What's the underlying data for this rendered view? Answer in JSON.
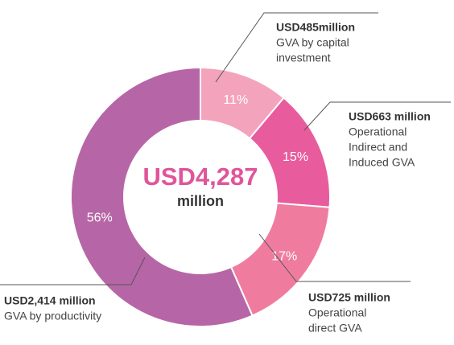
{
  "chart_data": {
    "type": "donut",
    "values": [
      11,
      15,
      17,
      56
    ],
    "value_labels": [
      "11%",
      "15%",
      "17%",
      "56%"
    ],
    "colors": [
      "#f4a3bd",
      "#e85c9d",
      "#ef7c9f",
      "#b666a6"
    ],
    "center_label": [
      "USD4,287",
      "million"
    ],
    "annotations": [
      {
        "amount": "USD485million",
        "lines": [
          "GVA by capital",
          "investment"
        ]
      },
      {
        "amount": "USD663 million",
        "lines": [
          "Operational",
          "Indirect and",
          "Induced GVA"
        ]
      },
      {
        "amount": "USD725 million",
        "lines": [
          "Operational",
          "direct GVA"
        ]
      },
      {
        "amount": "USD2,414 million",
        "lines": [
          "GVA by productivity"
        ]
      }
    ]
  }
}
